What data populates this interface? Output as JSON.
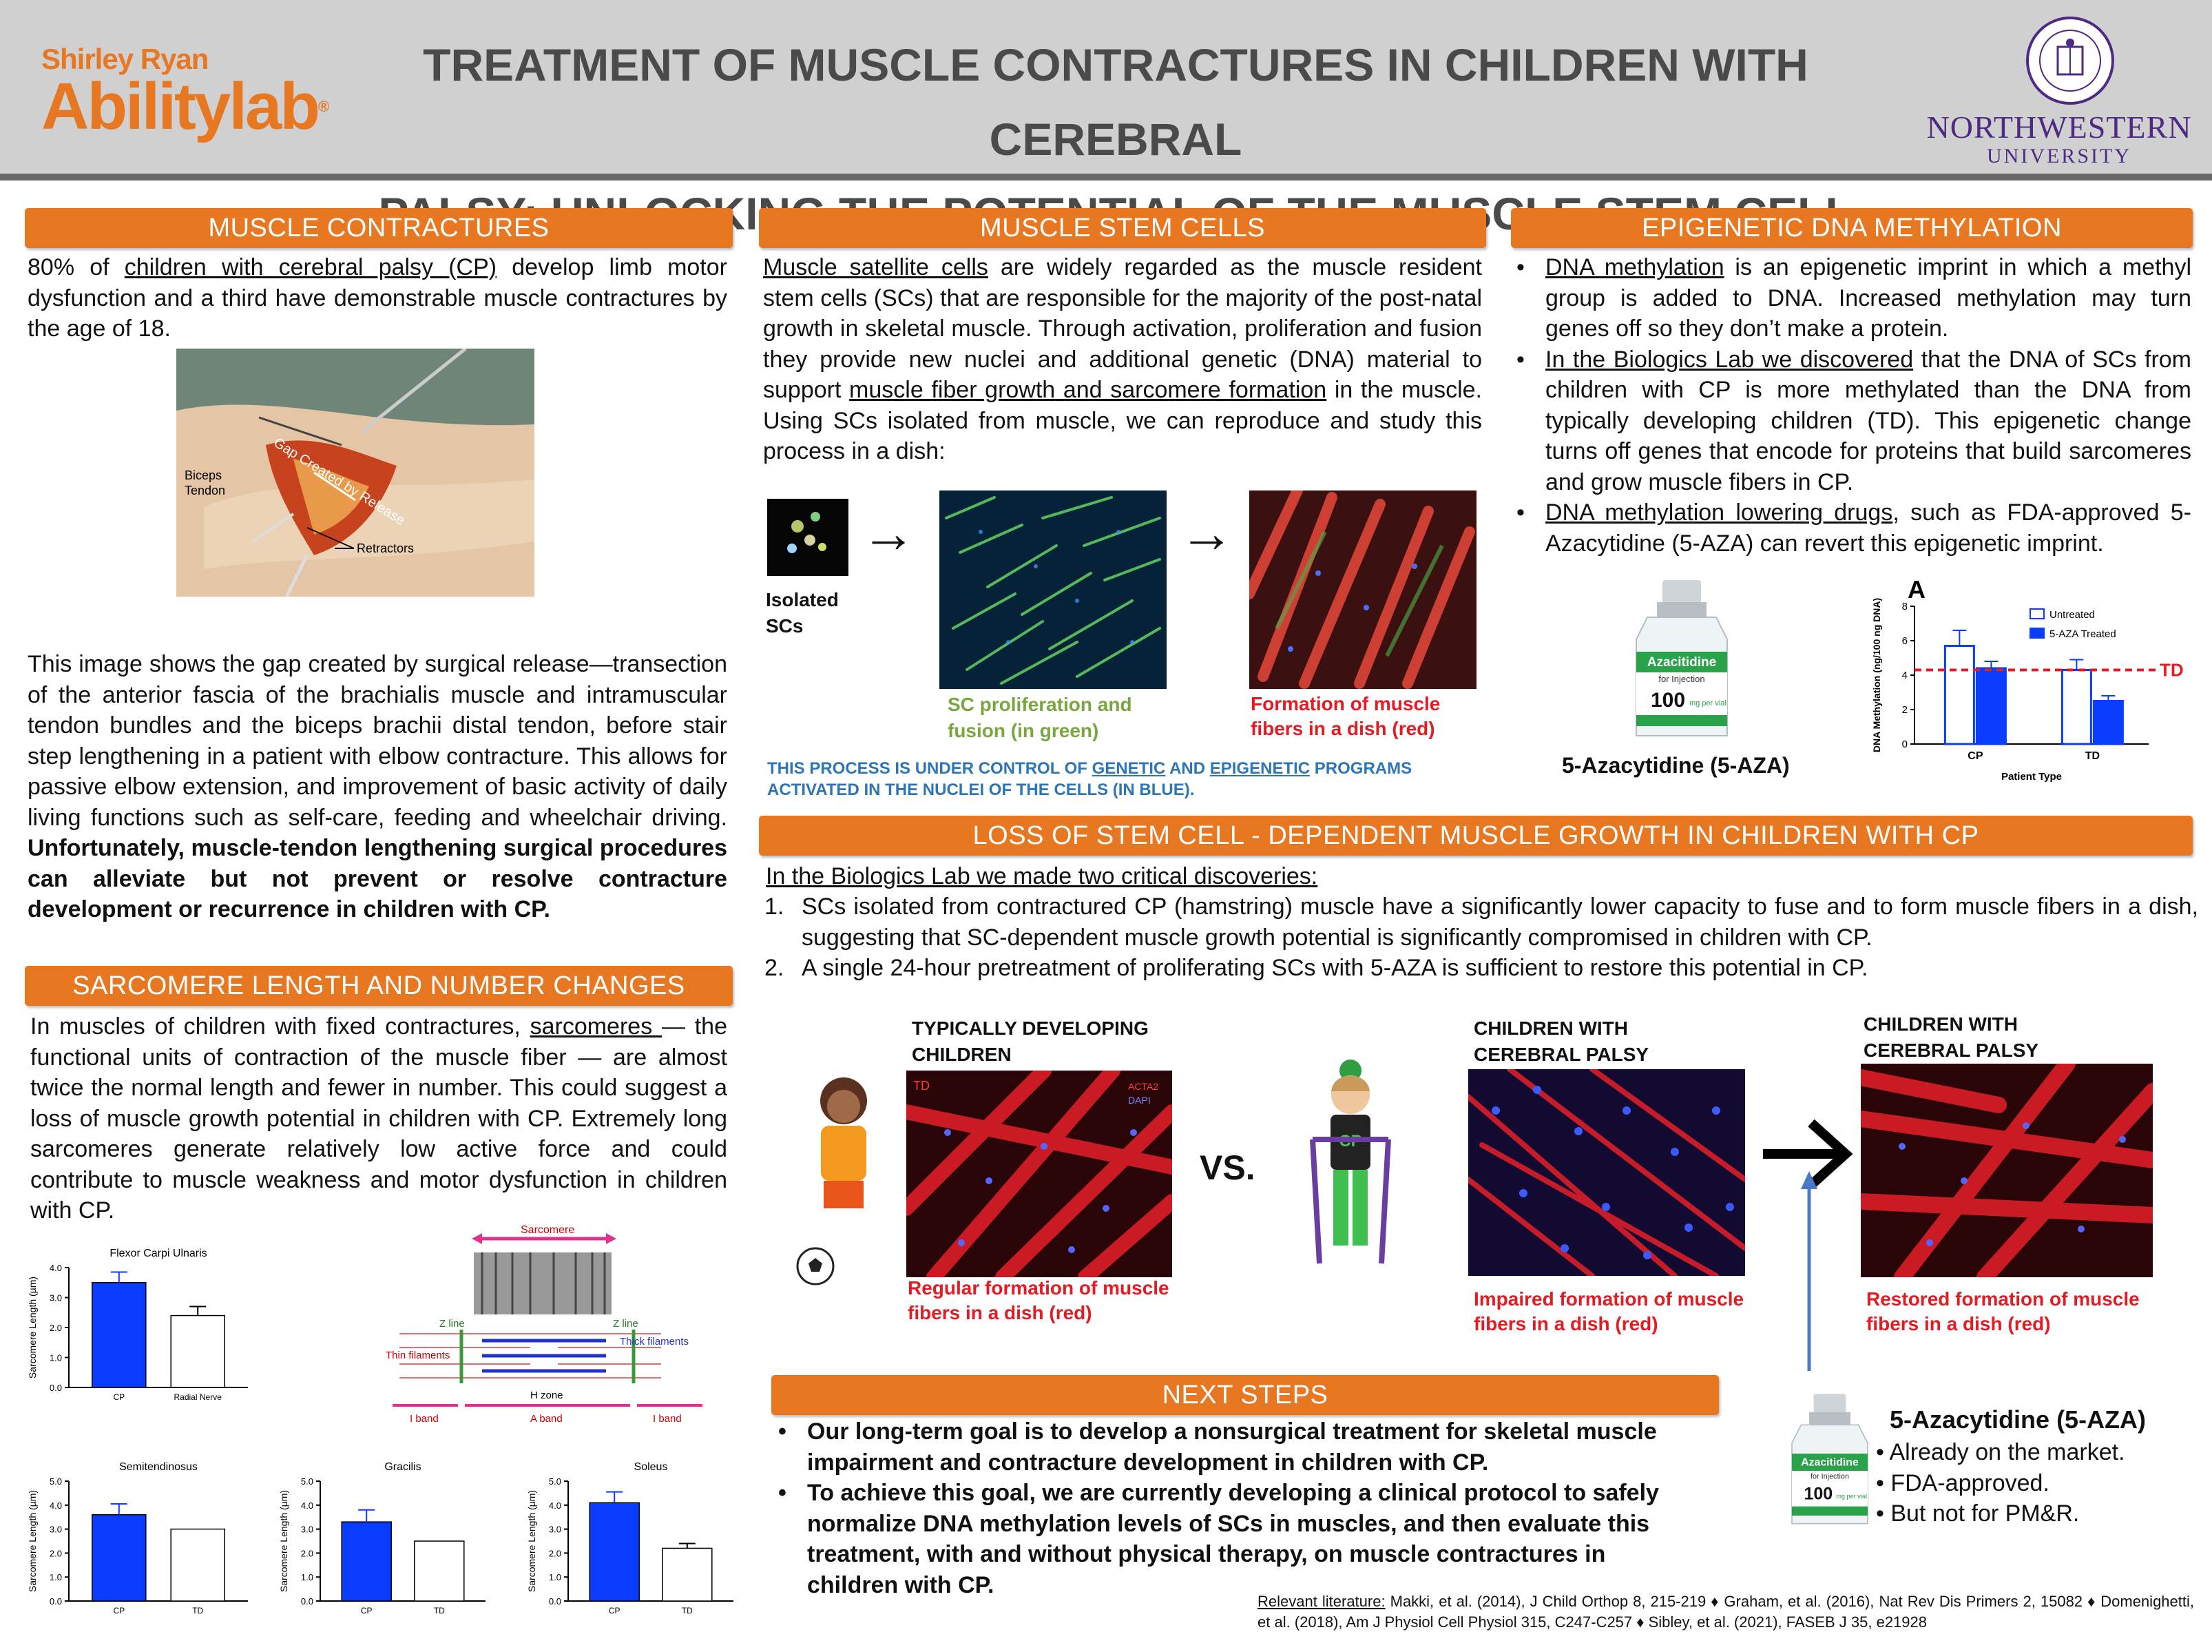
{
  "header": {
    "logo_top": "Shirley Ryan",
    "logo_bottom": "Abilitylab",
    "title_line1": "TREATMENT OF MUSCLE CONTRACTURES IN CHILDREN WITH CEREBRAL",
    "title_line2": "PALSY: UNLOCKING THE POTENTIAL OF THE MUSCLE STEM CELL",
    "nu_line1": "NORTHWESTERN",
    "nu_line2": "UNIVERSITY"
  },
  "colors": {
    "orange": "#e87722",
    "purple": "#4e2a84",
    "blue": "#0a3cff",
    "red": "#e31b23",
    "green": "#7aa640"
  },
  "muscle_contractures": {
    "heading": "MUSCLE CONTRACTURES",
    "intro_a": "80% of ",
    "intro_link": "children with cerebral palsy (CP)",
    "intro_b": " develop limb motor dysfunction and a third have demonstrable muscle contractures by the age of 18.",
    "photo_labels": {
      "gap": "Gap Created by Release",
      "biceps": "Biceps",
      "tendon": "Tendon",
      "retractors": "Retractors"
    },
    "body": "This image shows the gap created by surgical release—transection of the anterior fascia of the brachialis muscle and intramuscular tendon bundles and the biceps brachii distal tendon, before stair step lengthening in a patient with elbow contracture. This allows for passive elbow extension, and improvement of basic activity of daily living functions such as self-care, feeding and wheelchair driving. ",
    "body_bold": "Unfortunately, muscle-tendon lengthening surgical procedures can alleviate but not prevent or resolve contracture development or recurrence in children with CP."
  },
  "sarcomere": {
    "heading": "SARCOMERE LENGTH AND NUMBER CHANGES",
    "body_a": "In muscles of children with fixed contractures, ",
    "body_link": "sarcomeres ",
    "body_b": "— the functional units of contraction of the muscle fiber — are almost twice the normal length and fewer in number. This could suggest a loss of muscle growth potential in children with CP. Extremely long sarcomeres generate relatively low active force and could contribute to muscle weakness and motor dysfunction in children with CP.",
    "diagram": {
      "sarcomere": "Sarcomere",
      "zline1": "Z line",
      "zline2": "Z line",
      "thick": "Thick filaments",
      "thin": "Thin filaments",
      "hzone": "H zone",
      "iband1": "I band",
      "aband": "A band",
      "iband2": "I band"
    }
  },
  "stem_cells": {
    "heading": "MUSCLE STEM CELLS",
    "link1": "Muscle satellite cells",
    "text1": " are widely regarded as the muscle resident stem cells (SCs) that are responsible for the majority of the post-natal growth in skeletal muscle. Through activation, proliferation and fusion they provide new nuclei and additional genetic (DNA) material to support ",
    "link2": "muscle fiber growth and sarcomere formation",
    "text2": " in the muscle. Using SCs isolated from muscle, we can reproduce and study this process in a dish:",
    "isolated_1": "Isolated",
    "isolated_2": "SCs",
    "arrow": "→",
    "green_cap_1": "SC proliferation and",
    "green_cap_2": "fusion (in green)",
    "red_cap_1": "Formation of muscle",
    "red_cap_2": "fibers in a dish (red)",
    "control_a": "THIS PROCESS IS UNDER CONTROL OF ",
    "control_genetic": "GENETIC",
    "control_and": " AND ",
    "control_epigenetic": "EPIGENETIC",
    "control_b": " PROGRAMS",
    "control_line2": "ACTIVATED IN THE NUCLEI OF THE CELLS (IN BLUE)."
  },
  "epigenetic": {
    "heading": "EPIGENETIC DNA METHYLATION",
    "b1_link": "DNA methylation",
    "b1_text": " is an epigenetic imprint in which a methyl group is added to DNA. Increased methylation may turn genes off so they don’t make a protein.",
    "b2_link": "In the Biologics Lab we discovered",
    "b2_text": " that the DNA of SCs from children with CP is more methylated than the DNA from typically developing children (TD). This epigenetic change turns off genes that encode for proteins that build sarcomeres and grow muscle fibers in CP.",
    "b3_link": "DNA methylation lowering drugs",
    "b3_text": ", such as FDA-approved 5-Azacytidine (5-AZA) can revert this epigenetic imprint.",
    "vial_caption": "5-Azacytidine (5-AZA)",
    "vial": {
      "brand": "Azacitidine",
      "sub": "for Injection",
      "dose": "100",
      "unit": "mg per vial"
    }
  },
  "loss": {
    "heading": "LOSS OF STEM CELL - DEPENDENT MUSCLE GROWTH IN CHILDREN WITH CP",
    "intro": "In the Biologics Lab we made two critical discoveries:",
    "items": [
      {
        "n": "1.",
        "text": "SCs isolated from contractured CP (hamstring) muscle have a significantly lower capacity to fuse and to form muscle fibers in a dish, suggesting that SC-dependent muscle growth potential is significantly compromised in children with CP."
      },
      {
        "n": "2.",
        "text": "A single 24-hour pretreatment of proliferating SCs with 5-AZA is sufficient to restore this potential in CP."
      }
    ],
    "td_title_1": "TYPICALLY DEVELOPING",
    "td_title_2": "CHILDREN",
    "td_tag": "TD",
    "stain_1": "ACTA2",
    "stain_2": "DAPI",
    "vs": "VS.",
    "cp_title_1": "CHILDREN WITH",
    "cp_title_2": "CEREBRAL PALSY",
    "cp2_title_1": "CHILDREN WITH",
    "cp2_title_2": "CEREBRAL PALSY",
    "shirt": "CP",
    "cap_td_1": "Regular formation of muscle",
    "cap_td_2": "fibers in a dish (red)",
    "cap_cp_1": "Impaired formation of muscle",
    "cap_cp_2": "fibers in a dish (red)",
    "cap_cp2_1": "Restored formation of muscle",
    "cap_cp2_2": "fibers in a dish (red)"
  },
  "next_steps": {
    "heading": "NEXT STEPS",
    "items": [
      "Our long-term goal is to develop a nonsurgical treatment for skeletal muscle impairment and contracture development in children with CP.",
      "To achieve this goal, we are currently developing a clinical protocol to safely normalize DNA methylation levels of SCs in muscles, and then evaluate this treatment, with and without physical therapy, on muscle contractures in children with CP."
    ]
  },
  "aza_box": {
    "title": "5-Azacytidine (5-AZA)",
    "items": [
      "Already on the market.",
      "FDA-approved.",
      "But not for PM&R."
    ]
  },
  "literature": {
    "label": "Relevant literature:",
    "text": " Makki, et al. (2014), J Child Orthop 8, 215-219 ♦ Graham, et al. (2016), Nat Rev Dis Primers 2, 15082 ♦ Domenighetti, et al. (2018), Am J Physiol Cell Physiol 315, C247-C257 ♦ Sibley, et al. (2021), FASEB J 35, e21928"
  },
  "chart_data": [
    {
      "type": "bar",
      "panel": "A",
      "categories": [
        "CP",
        "TD"
      ],
      "series": [
        {
          "name": "Untreated",
          "values": [
            5.7,
            4.3
          ],
          "errors": [
            0.9,
            0.6
          ]
        },
        {
          "name": "5-AZA Treated",
          "values": [
            4.4,
            2.5
          ],
          "errors": [
            0.4,
            0.3
          ]
        }
      ],
      "reference_line": {
        "label": "TD",
        "value": 4.3
      },
      "xlabel": "Patient Type",
      "ylabel": "DNA Methylation (ng/100 ng DNA)",
      "ylim": [
        0,
        8
      ],
      "yticks": [
        "0",
        "2",
        "4",
        "6",
        "8"
      ],
      "legend": "top-right"
    },
    {
      "type": "bar",
      "title": "Flexor Carpi Ulnaris",
      "categories": [
        "CP",
        "Radial Nerve"
      ],
      "values": [
        3.5,
        2.4
      ],
      "errors": [
        0.35,
        0.3
      ],
      "ylabel": "Sarcomere Length (µm)",
      "ylim": [
        0,
        4
      ],
      "yticks": [
        "0.0",
        "1.0",
        "2.0",
        "3.0",
        "4.0"
      ]
    },
    {
      "type": "bar",
      "title": "Semitendinosus",
      "categories": [
        "CP",
        "TD"
      ],
      "values": [
        3.6,
        3.0
      ],
      "errors": [
        0.45,
        0
      ],
      "ylabel": "Sarcomere Length (µm)",
      "ylim": [
        0,
        5
      ],
      "yticks": [
        "0.0",
        "1.0",
        "2.0",
        "3.0",
        "4.0",
        "5.0"
      ]
    },
    {
      "type": "bar",
      "title": "Gracilis",
      "categories": [
        "CP",
        "TD"
      ],
      "values": [
        3.3,
        2.5
      ],
      "errors": [
        0.5,
        0
      ],
      "ylabel": "Sarcomere Length (µm)",
      "ylim": [
        0,
        5
      ],
      "yticks": [
        "0.0",
        "1.0",
        "2.0",
        "3.0",
        "4.0",
        "5.0"
      ]
    },
    {
      "type": "bar",
      "title": "Soleus",
      "categories": [
        "CP",
        "TD"
      ],
      "values": [
        4.1,
        2.2
      ],
      "errors": [
        0.45,
        0.2
      ],
      "ylabel": "Sarcomere Length (µm)",
      "ylim": [
        0,
        5
      ],
      "yticks": [
        "0.0",
        "1.0",
        "2.0",
        "3.0",
        "4.0",
        "5.0"
      ]
    }
  ]
}
